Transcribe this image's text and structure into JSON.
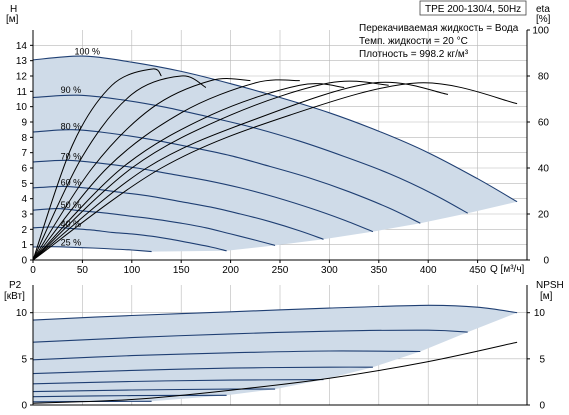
{
  "title": "TPE 200-130/4, 50Hz",
  "info": {
    "liquid": "Перекачиваемая жидкость = Вода",
    "temp": "Темп. жидкости = 20 °C",
    "density": "Плотность = 998.2 кг/м³"
  },
  "labels": {
    "h_title": "H",
    "h_unit": "[м]",
    "eta_title": "eta",
    "eta_unit": "[%]",
    "q_label": "Q [м³/ч]",
    "p2_title": "P2",
    "p2_unit": "[кВт]",
    "npsh_title": "NPSH",
    "npsh_unit": "[м]"
  },
  "colors": {
    "curve": "#1f3f73",
    "fill": "#cfdbe8",
    "grid": "#b8b8b8",
    "black": "#000000"
  },
  "chart_data": [
    {
      "type": "line",
      "name": "head",
      "xlabel": "Q [м³/ч]",
      "ylabel": "H [м]",
      "x_range": [
        0,
        500
      ],
      "x_ticks": [
        0,
        50,
        100,
        150,
        200,
        250,
        300,
        350,
        400,
        450
      ],
      "ylim": [
        0,
        15
      ],
      "y_ticks": [
        0,
        1,
        2,
        3,
        4,
        5,
        6,
        7,
        8,
        9,
        10,
        11,
        12,
        13,
        14
      ],
      "grid": true,
      "series": [
        {
          "name": "100 %",
          "label_x": 42,
          "label_y": 13.4,
          "points": [
            [
              0,
              13.05
            ],
            [
              50,
              13.3
            ],
            [
              100,
              12.9
            ],
            [
              150,
              12.3
            ],
            [
              200,
              11.5
            ],
            [
              250,
              10.6
            ],
            [
              300,
              9.6
            ],
            [
              350,
              8.4
            ],
            [
              400,
              7.0
            ],
            [
              450,
              5.3
            ],
            [
              490,
              3.8
            ]
          ]
        },
        {
          "name": "90 %",
          "label_x": 28,
          "label_y": 10.9,
          "points": [
            [
              0,
              10.6
            ],
            [
              45,
              10.75
            ],
            [
              90,
              10.45
            ],
            [
              135,
              9.95
            ],
            [
              180,
              9.3
            ],
            [
              225,
              8.6
            ],
            [
              270,
              7.75
            ],
            [
              315,
              6.75
            ],
            [
              360,
              5.65
            ],
            [
              405,
              4.3
            ],
            [
              440,
              3.05
            ]
          ]
        },
        {
          "name": "80 %",
          "label_x": 28,
          "label_y": 8.5,
          "points": [
            [
              0,
              8.35
            ],
            [
              40,
              8.5
            ],
            [
              80,
              8.25
            ],
            [
              120,
              7.85
            ],
            [
              160,
              7.35
            ],
            [
              200,
              6.8
            ],
            [
              240,
              6.1
            ],
            [
              280,
              5.35
            ],
            [
              320,
              4.45
            ],
            [
              360,
              3.4
            ],
            [
              392,
              2.4
            ]
          ]
        },
        {
          "name": "70 %",
          "label_x": 28,
          "label_y": 6.55,
          "points": [
            [
              0,
              6.4
            ],
            [
              35,
              6.5
            ],
            [
              70,
              6.3
            ],
            [
              105,
              6.0
            ],
            [
              140,
              5.6
            ],
            [
              175,
              5.2
            ],
            [
              210,
              4.7
            ],
            [
              245,
              4.1
            ],
            [
              280,
              3.4
            ],
            [
              315,
              2.6
            ],
            [
              344,
              1.85
            ]
          ]
        },
        {
          "name": "60 %",
          "label_x": 28,
          "label_y": 4.85,
          "points": [
            [
              0,
              4.7
            ],
            [
              30,
              4.8
            ],
            [
              60,
              4.65
            ],
            [
              90,
              4.4
            ],
            [
              120,
              4.15
            ],
            [
              150,
              3.8
            ],
            [
              180,
              3.45
            ],
            [
              210,
              3.0
            ],
            [
              240,
              2.5
            ],
            [
              270,
              1.9
            ],
            [
              294,
              1.35
            ]
          ]
        },
        {
          "name": "50 %",
          "label_x": 28,
          "label_y": 3.4,
          "points": [
            [
              0,
              3.25
            ],
            [
              25,
              3.35
            ],
            [
              50,
              3.2
            ],
            [
              75,
              3.05
            ],
            [
              100,
              2.85
            ],
            [
              125,
              2.65
            ],
            [
              150,
              2.4
            ],
            [
              175,
              2.1
            ],
            [
              200,
              1.7
            ],
            [
              225,
              1.3
            ],
            [
              245,
              0.95
            ]
          ]
        },
        {
          "name": "40 %",
          "label_x": 28,
          "label_y": 2.15,
          "points": [
            [
              0,
              2.1
            ],
            [
              20,
              2.15
            ],
            [
              40,
              2.05
            ],
            [
              60,
              1.95
            ],
            [
              80,
              1.8
            ],
            [
              100,
              1.7
            ],
            [
              120,
              1.55
            ],
            [
              140,
              1.35
            ],
            [
              160,
              1.1
            ],
            [
              180,
              0.85
            ],
            [
              196,
              0.6
            ]
          ]
        },
        {
          "name": "25 %",
          "label_x": 28,
          "label_y": 0.95,
          "points": [
            [
              0,
              0.85
            ],
            [
              20,
              0.87
            ],
            [
              40,
              0.83
            ],
            [
              60,
              0.78
            ],
            [
              80,
              0.72
            ],
            [
              100,
              0.65
            ],
            [
              120,
              0.55
            ]
          ]
        }
      ]
    },
    {
      "type": "line",
      "name": "efficiency",
      "ylabel": "eta [%]",
      "ylim": [
        0,
        100
      ],
      "y_ticks": [
        0,
        20,
        40,
        60,
        80,
        100
      ],
      "series": [
        {
          "points": [
            [
              0,
              0
            ],
            [
              40,
              50
            ],
            [
              80,
              76
            ],
            [
              120,
              83
            ],
            [
              130,
              80
            ]
          ]
        },
        {
          "points": [
            [
              0,
              0
            ],
            [
              50,
              45
            ],
            [
              100,
              72
            ],
            [
              150,
              80
            ],
            [
              175,
              75
            ]
          ]
        },
        {
          "points": [
            [
              0,
              0
            ],
            [
              60,
              40
            ],
            [
              120,
              66
            ],
            [
              180,
              78
            ],
            [
              220,
              78
            ]
          ]
        },
        {
          "points": [
            [
              0,
              0
            ],
            [
              75,
              40
            ],
            [
              150,
              64
            ],
            [
              225,
              77
            ],
            [
              270,
              78
            ]
          ]
        },
        {
          "points": [
            [
              0,
              0
            ],
            [
              90,
              40
            ],
            [
              180,
              63
            ],
            [
              270,
              76
            ],
            [
              315,
              75
            ]
          ]
        },
        {
          "points": [
            [
              0,
              0
            ],
            [
              100,
              40
            ],
            [
              200,
              63
            ],
            [
              300,
              77
            ],
            [
              360,
              76
            ]
          ]
        },
        {
          "points": [
            [
              0,
              0
            ],
            [
              115,
              40
            ],
            [
              230,
              62
            ],
            [
              345,
              77
            ],
            [
              420,
              72
            ]
          ]
        },
        {
          "points": [
            [
              0,
              0
            ],
            [
              130,
              40
            ],
            [
              260,
              63
            ],
            [
              390,
              77
            ],
            [
              490,
              68
            ]
          ]
        }
      ]
    },
    {
      "type": "line",
      "name": "power",
      "xlabel": "Q [м³/ч]",
      "ylabel": "P2 [кВт]",
      "x_range": [
        0,
        500
      ],
      "ylim": [
        0,
        13
      ],
      "y_ticks": [
        0,
        5,
        10
      ],
      "grid": true,
      "series": [
        {
          "points": [
            [
              0,
              9.2
            ],
            [
              100,
              9.7
            ],
            [
              200,
              10.1
            ],
            [
              300,
              10.5
            ],
            [
              400,
              10.8
            ],
            [
              450,
              10.6
            ],
            [
              490,
              10.0
            ]
          ]
        },
        {
          "points": [
            [
              0,
              6.8
            ],
            [
              100,
              7.3
            ],
            [
              200,
              7.7
            ],
            [
              300,
              8.0
            ],
            [
              400,
              8.1
            ],
            [
              440,
              7.9
            ]
          ]
        },
        {
          "points": [
            [
              0,
              4.9
            ],
            [
              100,
              5.35
            ],
            [
              200,
              5.65
            ],
            [
              300,
              5.85
            ],
            [
              392,
              5.8
            ]
          ]
        },
        {
          "points": [
            [
              0,
              3.4
            ],
            [
              100,
              3.75
            ],
            [
              200,
              4.0
            ],
            [
              300,
              4.1
            ],
            [
              344,
              4.1
            ]
          ]
        },
        {
          "points": [
            [
              0,
              2.3
            ],
            [
              100,
              2.55
            ],
            [
              200,
              2.7
            ],
            [
              294,
              2.75
            ]
          ]
        },
        {
          "points": [
            [
              0,
              1.45
            ],
            [
              100,
              1.62
            ],
            [
              200,
              1.72
            ],
            [
              245,
              1.72
            ]
          ]
        },
        {
          "points": [
            [
              0,
              0.9
            ],
            [
              100,
              1.02
            ],
            [
              196,
              1.05
            ]
          ]
        },
        {
          "points": [
            [
              0,
              0.35
            ],
            [
              60,
              0.38
            ],
            [
              120,
              0.4
            ]
          ]
        }
      ]
    },
    {
      "type": "line",
      "name": "npsh",
      "ylabel": "NPSH [м]",
      "ylim": [
        0,
        13
      ],
      "y_ticks": [
        0,
        5,
        10
      ],
      "series": [
        {
          "points": [
            [
              0,
              0.2
            ],
            [
              100,
              0.6
            ],
            [
              200,
              1.6
            ],
            [
              300,
              2.9
            ],
            [
              400,
              4.7
            ],
            [
              490,
              6.8
            ]
          ]
        }
      ]
    }
  ]
}
